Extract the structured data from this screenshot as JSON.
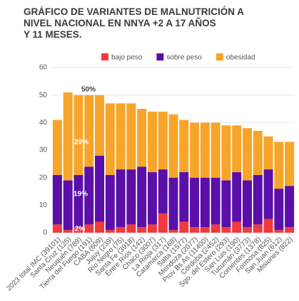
{
  "chart_data": {
    "type": "stacked_bar",
    "title": [
      "GRÁFICO DE VARIANTES DE MALNUTRICIÓN A",
      "NIVEL NACIONAL EN NNYA +2 A 17 AÑOS",
      "Y 11 MESES."
    ],
    "categories": [
      "2023 total IMC (39101)",
      "Santa Cruz (125)",
      "Neuquén (789)",
      "Tierra del Fuego (191)",
      "CABA (609)",
      "Jujuy (239)",
      "Río Negro (75)",
      "Santa Fe (3918)",
      "Entre Ríos (142)",
      "Chaco (3007)",
      "La Rioja (317)",
      "Catamarca (168)",
      "Salta (1577)",
      "Mendoza (2077)",
      "Prov Bs As (11400)",
      "Córdoba (2452)",
      "Sgo. del Estero (293)",
      "San Luis (190)",
      "Tucumán (3773)",
      "Corrientes (1378)",
      "Formosa (825)",
      "San Juan (612)",
      "Misiones (822)"
    ],
    "series": [
      {
        "name": "bajo peso",
        "color": "#f03a3e",
        "values": [
          3,
          1,
          2,
          3,
          4,
          1,
          2,
          3,
          2,
          3,
          7,
          1,
          4,
          2,
          2,
          3,
          2,
          4,
          2,
          3,
          5,
          1,
          2
        ]
      },
      {
        "name": "sobre peso",
        "color": "#5a0fa8",
        "values": [
          18,
          18,
          19,
          21,
          24,
          20,
          21,
          20,
          22,
          19,
          16,
          19,
          18,
          18,
          18,
          17,
          17,
          18,
          17,
          18,
          18,
          15,
          15
        ]
      },
      {
        "name": "obesidad",
        "color": "#f7a52a",
        "values": [
          20,
          32,
          29,
          26,
          22,
          26,
          24,
          24,
          21,
          22,
          21,
          23,
          19,
          20,
          20,
          20,
          20,
          17,
          19,
          16,
          12,
          17,
          16
        ]
      }
    ],
    "annotations": [
      "50%",
      "29%",
      "19%",
      "2%"
    ],
    "ylim": [
      0,
      60
    ],
    "yticks": [
      0,
      10,
      20,
      30,
      40,
      50,
      60
    ],
    "grid": true,
    "legend": "top"
  }
}
